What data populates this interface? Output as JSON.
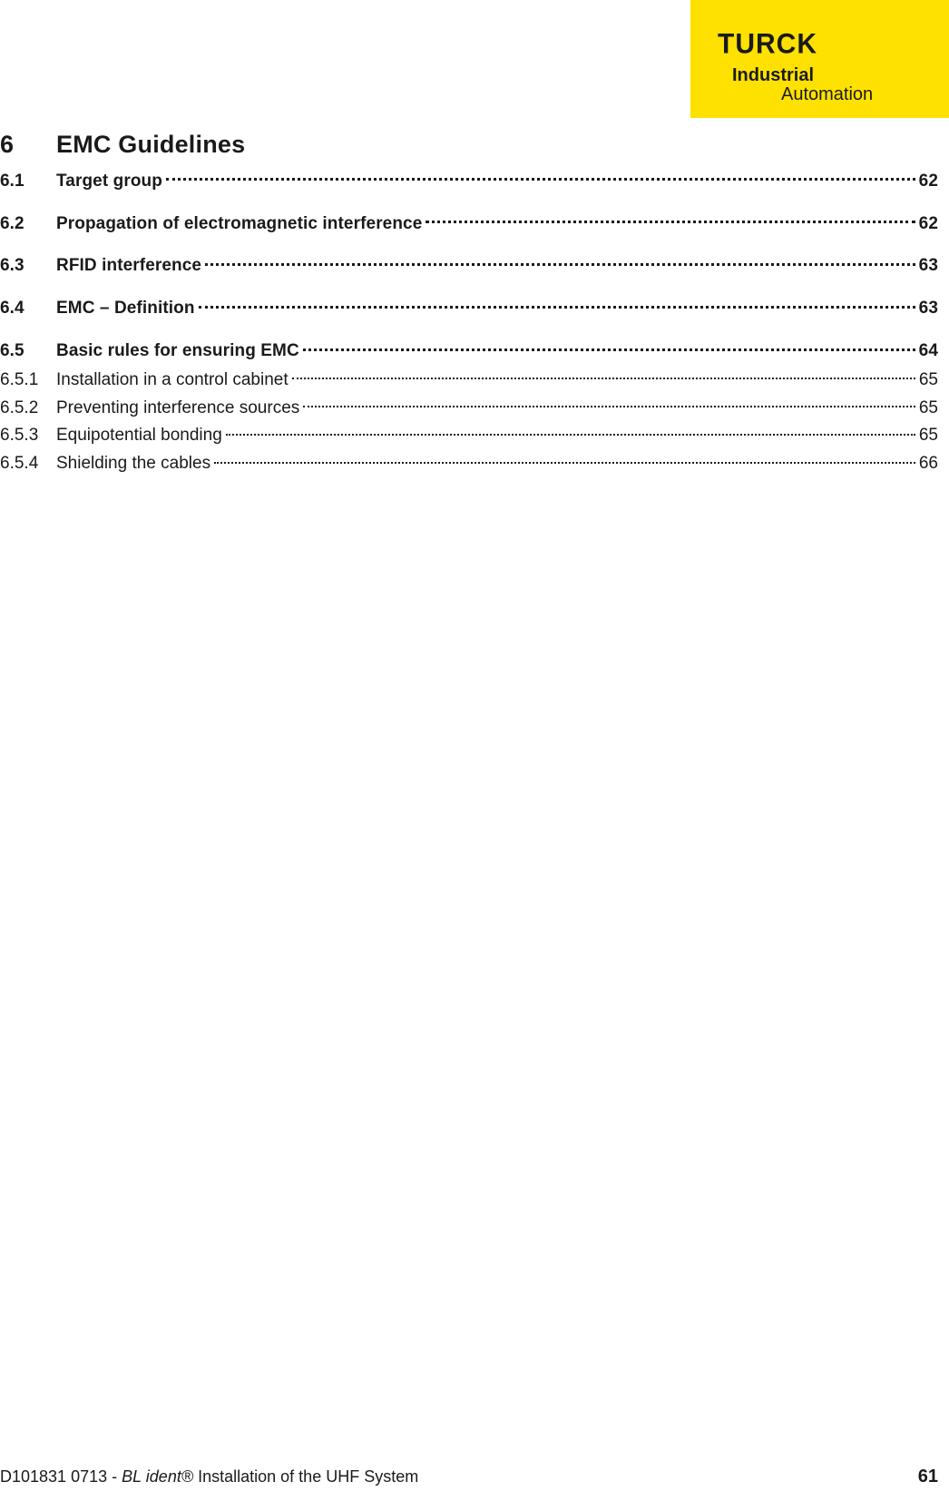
{
  "colors": {
    "page_bg": "#ffffff",
    "text": "#1a1a1a",
    "logo_bg": "#ffe100",
    "logo_fg": "#1a1a1a"
  },
  "typography": {
    "chapter_fontsize_pt": 20,
    "lvl1_fontsize_pt": 14,
    "lvl2_fontsize_pt": 14,
    "footer_fontsize_pt": 13,
    "lvl1_weight": 800,
    "lvl2_weight": 400
  },
  "header": {
    "brand": "TURCK",
    "sub1": "Industrial",
    "sub2": "Automation"
  },
  "chapter": {
    "number": "6",
    "title": "EMC Guidelines"
  },
  "toc": {
    "lvl1": [
      {
        "num": "6.1",
        "label": "Target group",
        "page": "62"
      },
      {
        "num": "6.2",
        "label": "Propagation of electromagnetic interference",
        "page": "62"
      },
      {
        "num": "6.3",
        "label": "RFID interference",
        "page": "63"
      },
      {
        "num": "6.4",
        "label": "EMC – Definition",
        "page": "63"
      },
      {
        "num": "6.5",
        "label": "Basic rules for ensuring EMC",
        "page": "64"
      }
    ],
    "lvl2": [
      {
        "num": "6.5.1",
        "label": "Installation in a control cabinet",
        "page": "65"
      },
      {
        "num": "6.5.2",
        "label": "Preventing interference sources",
        "page": "65"
      },
      {
        "num": "6.5.3",
        "label": "Equipotential bonding",
        "page": "65"
      },
      {
        "num": "6.5.4",
        "label": "Shielding the cables",
        "page": "66"
      }
    ]
  },
  "footer": {
    "docid": "D101831 0713 -  ",
    "product_italic": "BL ident®",
    "product_rest": " Installation of the UHF System",
    "page_number": "61"
  }
}
